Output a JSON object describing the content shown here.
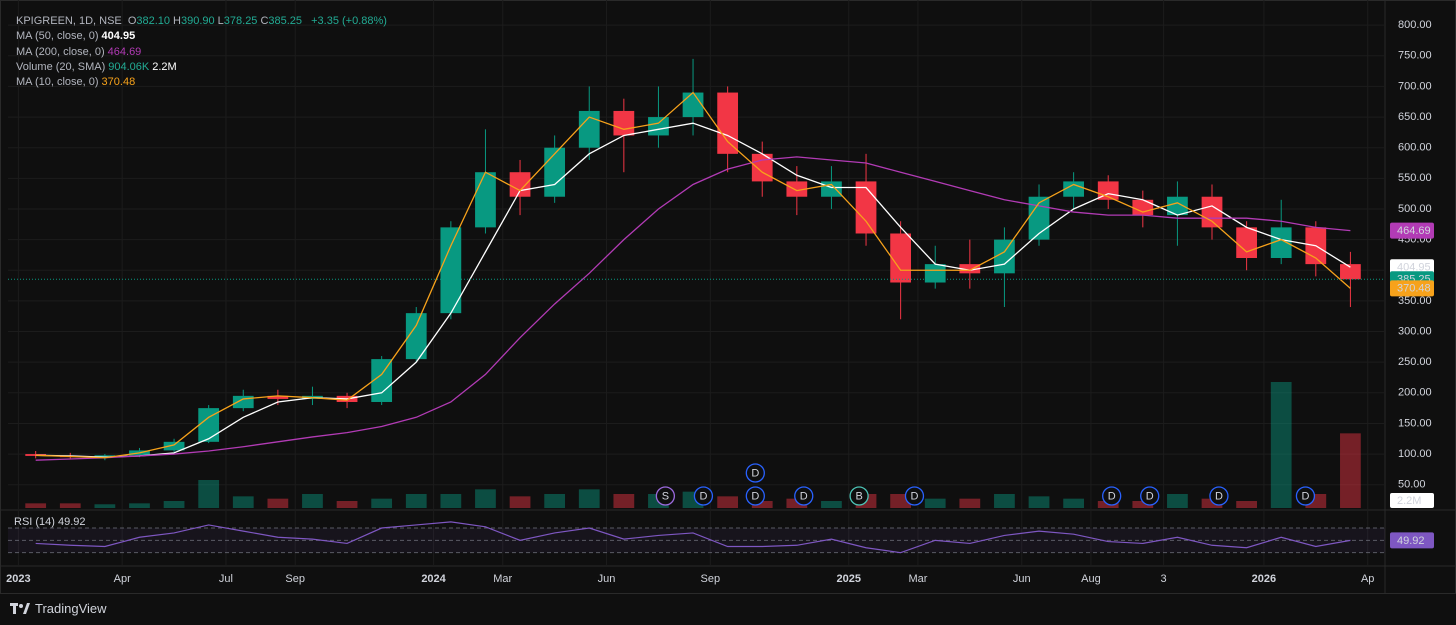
{
  "chart_data": {
    "type": "candlestick",
    "symbol": "KPIGREEN, 1D, NSE",
    "ohlc_labels": [
      {
        "key": "O",
        "text": "382.10"
      },
      {
        "key": "H",
        "text": "390.90"
      },
      {
        "key": "L",
        "text": "378.25"
      },
      {
        "key": "C",
        "text": "385.25"
      }
    ],
    "change": "+3.35 (+0.88%)",
    "x": [
      0.5,
      1.5,
      2.5,
      3.5,
      4.5,
      5.5,
      6.5,
      7.5,
      8.5,
      9.5,
      10.5,
      11.5,
      12.5,
      13.5,
      14.5,
      15.5,
      16.5,
      17.5,
      18.5,
      19.5,
      20.5,
      21.5,
      22.5,
      23.5,
      24.5,
      25.5,
      26.5,
      27.5,
      28.5,
      29.5,
      30.5,
      31.5,
      32.5,
      33.5,
      34.5,
      35.5,
      36.5,
      37.5,
      38.5
    ],
    "open": [
      100,
      97,
      95,
      98,
      106,
      120,
      175,
      195,
      190,
      195,
      185,
      255,
      330,
      470,
      560,
      520,
      600,
      660,
      620,
      650,
      690,
      590,
      545,
      520,
      545,
      460,
      380,
      410,
      395,
      450,
      520,
      545,
      515,
      490,
      520,
      470,
      420,
      470,
      410
    ],
    "high": [
      105,
      102,
      100,
      110,
      125,
      180,
      205,
      205,
      210,
      200,
      260,
      340,
      480,
      630,
      580,
      620,
      700,
      680,
      700,
      745,
      700,
      610,
      570,
      570,
      590,
      480,
      440,
      450,
      470,
      540,
      560,
      555,
      530,
      545,
      540,
      480,
      515,
      480,
      430
    ],
    "low": [
      93,
      92,
      90,
      95,
      103,
      118,
      170,
      180,
      180,
      175,
      180,
      250,
      320,
      460,
      490,
      510,
      580,
      560,
      600,
      620,
      560,
      520,
      490,
      500,
      440,
      320,
      370,
      370,
      340,
      440,
      500,
      500,
      470,
      440,
      450,
      400,
      410,
      390,
      340
    ],
    "close": [
      97,
      95,
      98,
      106,
      120,
      175,
      195,
      190,
      195,
      185,
      255,
      330,
      470,
      560,
      520,
      600,
      660,
      620,
      650,
      690,
      590,
      545,
      520,
      545,
      460,
      380,
      410,
      395,
      450,
      520,
      545,
      515,
      490,
      520,
      470,
      420,
      470,
      410,
      385.25
    ],
    "up_color": "#089981",
    "down_color": "#f23645",
    "xlim": [
      -0.3,
      39.5
    ],
    "xticks": [
      {
        "value": 0,
        "label": "2023"
      },
      {
        "value": 3,
        "label": "Apr"
      },
      {
        "value": 6,
        "label": "Jul"
      },
      {
        "value": 8,
        "label": "Sep"
      },
      {
        "value": 12,
        "label": "2024"
      },
      {
        "value": 14,
        "label": "Mar"
      },
      {
        "value": 17,
        "label": "Jun"
      },
      {
        "value": 20,
        "label": "Sep"
      },
      {
        "value": 24,
        "label": "2025"
      },
      {
        "value": 26,
        "label": "Mar"
      },
      {
        "value": 29,
        "label": "Jun"
      },
      {
        "value": 31,
        "label": "Aug"
      },
      {
        "value": 33.1,
        "label": "3"
      },
      {
        "value": 36,
        "label": "2026"
      },
      {
        "value": 39,
        "label": "Ap"
      }
    ],
    "ylim": [
      12,
      828
    ],
    "yticks": [
      {
        "value": 50,
        "label": "50.00"
      },
      {
        "value": 100,
        "label": "100.00"
      },
      {
        "value": 150,
        "label": "150.00"
      },
      {
        "value": 200,
        "label": "200.00"
      },
      {
        "value": 250,
        "label": "250.00"
      },
      {
        "value": 300,
        "label": "300.00"
      },
      {
        "value": 350,
        "label": "350.00"
      },
      {
        "value": 400,
        "label": "400.00"
      },
      {
        "value": 450,
        "label": "450.00"
      },
      {
        "value": 500,
        "label": "500.00"
      },
      {
        "value": 550,
        "label": "550.00"
      },
      {
        "value": 600,
        "label": "600.00"
      },
      {
        "value": 650,
        "label": "650.00"
      },
      {
        "value": 700,
        "label": "700.00"
      },
      {
        "value": 750,
        "label": "750.00"
      },
      {
        "value": 800,
        "label": "800.00"
      }
    ],
    "last_price": 385.25,
    "overlays": [
      {
        "name": "MA (50, close, 0)",
        "color": "#ffffff",
        "last": 404.95,
        "values": [
          98,
          97,
          95,
          97,
          102,
          125,
          160,
          185,
          192,
          190,
          200,
          250,
          330,
          430,
          530,
          540,
          590,
          620,
          630,
          640,
          620,
          590,
          555,
          535,
          535,
          470,
          410,
          400,
          410,
          460,
          500,
          525,
          515,
          490,
          505,
          470,
          450,
          440,
          404.95
        ]
      },
      {
        "name": "MA (200, close, 0)",
        "color": "#b23bb5",
        "last": 464.69,
        "values": [
          90,
          92,
          94,
          97,
          100,
          105,
          112,
          120,
          128,
          135,
          145,
          160,
          185,
          230,
          290,
          345,
          395,
          450,
          500,
          540,
          565,
          580,
          585,
          580,
          575,
          560,
          545,
          530,
          515,
          505,
          495,
          490,
          490,
          485,
          485,
          485,
          480,
          470,
          464.69
        ]
      },
      {
        "name": "MA (10, close, 0)",
        "color": "#f7a21b",
        "last": 370.48,
        "values": [
          98,
          96,
          94,
          102,
          115,
          160,
          190,
          195,
          192,
          188,
          230,
          310,
          440,
          560,
          530,
          590,
          650,
          630,
          640,
          690,
          610,
          560,
          530,
          540,
          480,
          400,
          400,
          400,
          430,
          510,
          540,
          520,
          495,
          510,
          480,
          430,
          450,
          420,
          370.48
        ]
      }
    ],
    "volume": {
      "name": "Volume (20, SMA)",
      "value_label": "904.06K",
      "avg_label": "2.2M",
      "vlim": [
        0,
        30
      ],
      "values": [
        1,
        1,
        0.8,
        1,
        1.5,
        6,
        2.5,
        2,
        3,
        1.5,
        2,
        3,
        3,
        4,
        2.5,
        3,
        4,
        3,
        3,
        3.5,
        2.5,
        1.5,
        2,
        1.5,
        3,
        3,
        2,
        2,
        3,
        2.5,
        2,
        1.5,
        1.5,
        3,
        2,
        1.5,
        27,
        3,
        16
      ]
    },
    "rsi": {
      "name": "RSI (14)",
      "last": 49.92,
      "color": "#7e57c2",
      "ylim": [
        10,
        96
      ],
      "levels": [
        70,
        50,
        30
      ],
      "values": [
        45,
        42,
        40,
        55,
        62,
        75,
        65,
        55,
        52,
        45,
        70,
        75,
        80,
        72,
        50,
        62,
        70,
        52,
        58,
        62,
        40,
        40,
        42,
        52,
        38,
        30,
        50,
        45,
        58,
        65,
        60,
        48,
        45,
        55,
        42,
        38,
        55,
        40,
        49.92
      ]
    },
    "events": [
      {
        "label": "S",
        "x": 18.7
      },
      {
        "label": "D",
        "x": 19.8
      },
      {
        "label": "D",
        "x": 21.3
      },
      {
        "label": "D",
        "x": 21.3
      },
      {
        "label": "D",
        "x": 22.7
      },
      {
        "label": "B",
        "x": 24.3
      },
      {
        "label": "D",
        "x": 25.9
      },
      {
        "label": "D",
        "x": 31.6
      },
      {
        "label": "D",
        "x": 32.7
      },
      {
        "label": "D",
        "x": 34.7
      },
      {
        "label": "D",
        "x": 37.2
      }
    ],
    "footer": "TradingView"
  }
}
